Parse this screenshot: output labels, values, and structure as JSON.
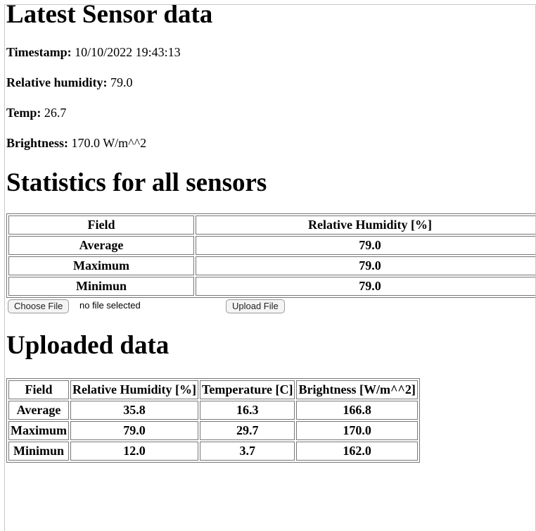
{
  "latest": {
    "heading": "Latest Sensor data",
    "timestamp_label": "Timestamp:",
    "timestamp_value": "10/10/2022 19:43:13",
    "humidity_label": "Relative humidity:",
    "humidity_value": "79.0",
    "temp_label": "Temp:",
    "temp_value": "26.7",
    "brightness_label": "Brightness:",
    "brightness_value": "170.0 W/m^^2"
  },
  "statistics": {
    "heading": "Statistics for all sensors",
    "columns": [
      "Field",
      "Relative Humidity [%]"
    ],
    "rows": [
      [
        "Average",
        "79.0"
      ],
      [
        "Maximum",
        "79.0"
      ],
      [
        "Minimun",
        "79.0"
      ]
    ]
  },
  "upload": {
    "choose_label": "Choose File",
    "status_text": "no file selected",
    "submit_label": "Upload File"
  },
  "uploaded": {
    "heading": "Uploaded data",
    "columns": [
      "Field",
      "Relative Humidity [%]",
      "Temperature [C]",
      "Brightness [W/m^^2]"
    ],
    "rows": [
      [
        "Average",
        "35.8",
        "16.3",
        "166.8"
      ],
      [
        "Maximum",
        "79.0",
        "29.7",
        "170.0"
      ],
      [
        "Minimun",
        "12.0",
        "3.7",
        "162.0"
      ]
    ]
  }
}
